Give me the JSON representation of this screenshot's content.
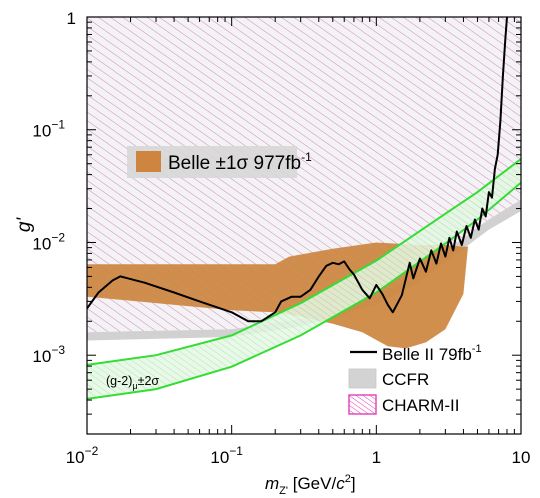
{
  "chart_data": {
    "type": "area",
    "xscale": "log",
    "yscale": "log",
    "xlim": [
      0.01,
      10
    ],
    "ylim": [
      0.0002,
      1
    ],
    "x_ticks": [
      {
        "value": 0.01,
        "base": "10",
        "exp": "−2"
      },
      {
        "value": 0.1,
        "base": "10",
        "exp": "−1"
      },
      {
        "value": 1,
        "base": "1",
        "exp": ""
      },
      {
        "value": 10,
        "base": "10",
        "exp": ""
      }
    ],
    "y_ticks": [
      {
        "value": 0.001,
        "base": "10",
        "exp": "−3"
      },
      {
        "value": 0.01,
        "base": "10",
        "exp": "−2"
      },
      {
        "value": 0.1,
        "base": "10",
        "exp": "−1"
      },
      {
        "value": 1,
        "base": "1",
        "exp": ""
      }
    ],
    "xlabel": {
      "m": "m",
      "sub": "Z'",
      "unit1": " [GeV/",
      "c": "c",
      "pow": "2",
      "unit2": "]"
    },
    "ylabel": "g'",
    "series": [
      {
        "name": "CHARM-II",
        "style": "hatched-pink",
        "color": "#e060c0",
        "upper": [
          [
            0.01,
            1
          ],
          [
            10,
            1
          ]
        ],
        "lower": [
          [
            0.01,
            0.0016
          ],
          [
            0.1,
            0.0017
          ],
          [
            0.3,
            0.0021
          ],
          [
            1,
            0.0033
          ],
          [
            2,
            0.0055
          ],
          [
            4,
            0.011
          ],
          [
            6,
            0.016
          ],
          [
            10,
            0.024
          ]
        ]
      },
      {
        "name": "CCFR",
        "style": "band",
        "color": "#cccccc",
        "upper": [
          [
            0.01,
            0.0016
          ],
          [
            0.1,
            0.0017
          ],
          [
            0.3,
            0.0021
          ],
          [
            1,
            0.0033
          ],
          [
            2,
            0.0055
          ],
          [
            4,
            0.011
          ],
          [
            6,
            0.016
          ],
          [
            10,
            0.024
          ]
        ],
        "lower": [
          [
            0.01,
            0.00135
          ],
          [
            0.1,
            0.00145
          ],
          [
            0.3,
            0.0018
          ],
          [
            1,
            0.0028
          ],
          [
            2,
            0.0045
          ],
          [
            4,
            0.0088
          ],
          [
            6,
            0.013
          ],
          [
            10,
            0.019
          ]
        ]
      },
      {
        "name": "Belle ±1σ 977fb",
        "name_sup": "-1",
        "style": "band",
        "color": "#cd853f",
        "upper": [
          [
            0.01,
            0.0064
          ],
          [
            0.2,
            0.0064
          ],
          [
            0.25,
            0.0075
          ],
          [
            0.5,
            0.0088
          ],
          [
            1,
            0.01
          ],
          [
            2,
            0.0095
          ],
          [
            3,
            0.0095
          ],
          [
            4,
            0.0092
          ]
        ],
        "lower": [
          [
            0.01,
            0.0033
          ],
          [
            0.03,
            0.0029
          ],
          [
            0.1,
            0.0025
          ],
          [
            0.2,
            0.0024
          ],
          [
            0.3,
            0.0022
          ],
          [
            0.5,
            0.0019
          ],
          [
            0.8,
            0.0016
          ],
          [
            1.2,
            0.0012
          ],
          [
            1.6,
            0.00115
          ],
          [
            2.2,
            0.0013
          ],
          [
            3,
            0.0017
          ],
          [
            4,
            0.0035
          ],
          [
            4.3,
            0.0092
          ]
        ]
      },
      {
        "name": "(g-2)",
        "name_sub": "μ",
        "name_tail": "±2σ",
        "style": "band",
        "color": "#33dd33",
        "upper": [
          [
            0.01,
            0.00082
          ],
          [
            0.03,
            0.001
          ],
          [
            0.1,
            0.0015
          ],
          [
            0.3,
            0.0029
          ],
          [
            1,
            0.0069
          ],
          [
            3,
            0.018
          ],
          [
            5,
            0.028
          ],
          [
            10,
            0.055
          ]
        ],
        "lower": [
          [
            0.01,
            0.00041
          ],
          [
            0.03,
            0.0005
          ],
          [
            0.1,
            0.00079
          ],
          [
            0.3,
            0.0015
          ],
          [
            1,
            0.0036
          ],
          [
            3,
            0.0098
          ],
          [
            5,
            0.016
          ],
          [
            10,
            0.034
          ]
        ]
      },
      {
        "name": "Belle II 79fb",
        "name_sup": "-1",
        "style": "line",
        "color": "#000000",
        "points": [
          [
            0.01,
            0.0026
          ],
          [
            0.012,
            0.0036
          ],
          [
            0.015,
            0.0046
          ],
          [
            0.017,
            0.005
          ],
          [
            0.025,
            0.0044
          ],
          [
            0.04,
            0.0036
          ],
          [
            0.06,
            0.003
          ],
          [
            0.1,
            0.0024
          ],
          [
            0.13,
            0.002
          ],
          [
            0.16,
            0.002
          ],
          [
            0.2,
            0.0024
          ],
          [
            0.22,
            0.003
          ],
          [
            0.26,
            0.0033
          ],
          [
            0.3,
            0.0033
          ],
          [
            0.35,
            0.0038
          ],
          [
            0.4,
            0.005
          ],
          [
            0.45,
            0.0062
          ],
          [
            0.5,
            0.0066
          ],
          [
            0.55,
            0.0064
          ],
          [
            0.6,
            0.0068
          ],
          [
            0.65,
            0.0058
          ],
          [
            0.7,
            0.0052
          ],
          [
            0.8,
            0.0038
          ],
          [
            0.9,
            0.0032
          ],
          [
            1.0,
            0.0042
          ],
          [
            1.1,
            0.0035
          ],
          [
            1.2,
            0.0028
          ],
          [
            1.3,
            0.0024
          ],
          [
            1.5,
            0.0034
          ],
          [
            1.7,
            0.0066
          ],
          [
            1.8,
            0.0048
          ],
          [
            2.0,
            0.0072
          ],
          [
            2.2,
            0.0055
          ],
          [
            2.4,
            0.0085
          ],
          [
            2.6,
            0.0065
          ],
          [
            2.8,
            0.0098
          ],
          [
            3.0,
            0.0075
          ],
          [
            3.2,
            0.011
          ],
          [
            3.4,
            0.0085
          ],
          [
            3.6,
            0.0125
          ],
          [
            3.9,
            0.0095
          ],
          [
            4.2,
            0.014
          ],
          [
            4.5,
            0.011
          ],
          [
            4.8,
            0.016
          ],
          [
            5.1,
            0.013
          ],
          [
            5.4,
            0.02
          ],
          [
            5.7,
            0.017
          ],
          [
            6.0,
            0.028
          ],
          [
            6.3,
            0.025
          ],
          [
            6.6,
            0.045
          ],
          [
            6.9,
            0.06
          ],
          [
            7.2,
            0.12
          ],
          [
            7.5,
            0.3
          ],
          [
            7.8,
            0.65
          ],
          [
            8.0,
            1.0
          ]
        ]
      }
    ],
    "legend": {
      "placement": "bottom-right",
      "entries": [
        {
          "label": "Belle II 79fb",
          "sup": "-1"
        },
        {
          "label": "CCFR"
        },
        {
          "label": "CHARM-II"
        }
      ]
    },
    "annotations": {
      "belle_band_label": {
        "text": "Belle ±1σ 977fb",
        "sup": "-1"
      },
      "g2_label": {
        "text": "(g-2)",
        "sub": "μ",
        "tail": "±2σ"
      }
    }
  }
}
